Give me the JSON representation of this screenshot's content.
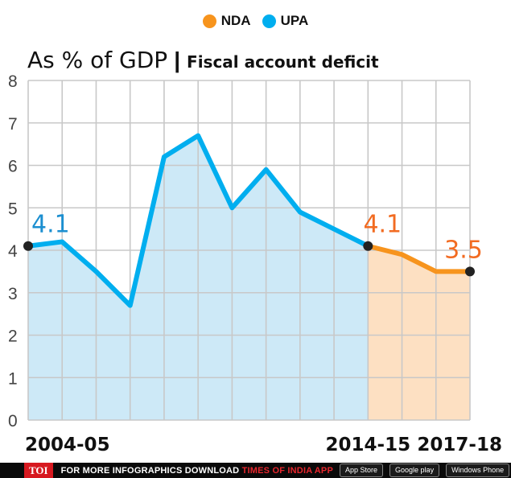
{
  "legend": {
    "items": [
      {
        "label": "NDA",
        "color": "#f7941d"
      },
      {
        "label": "UPA",
        "color": "#00aeef"
      }
    ]
  },
  "title": {
    "main": "As % of GDP",
    "separator": "|",
    "sub": "Fiscal account deficit"
  },
  "colors": {
    "upa_line": "#00aeef",
    "upa_fill": "#cde9f7",
    "nda_line": "#f7941d",
    "nda_fill": "#fde0c2",
    "upa_label": "#1c8fd0",
    "nda_label": "#f26b21",
    "grid": "#c8c8c8",
    "marker": "#222222"
  },
  "chart_data": {
    "type": "area",
    "x": [
      0,
      1,
      2,
      3,
      4,
      5,
      6,
      7,
      8,
      9,
      10,
      11,
      12,
      13
    ],
    "values": [
      4.1,
      4.2,
      3.5,
      2.7,
      6.2,
      6.7,
      5.0,
      5.9,
      4.9,
      4.5,
      4.1,
      3.9,
      3.5,
      3.5
    ],
    "series": [
      {
        "name": "UPA",
        "x": [
          0,
          1,
          2,
          3,
          4,
          5,
          6,
          7,
          8,
          9,
          10
        ],
        "values": [
          4.1,
          4.2,
          3.5,
          2.7,
          6.2,
          6.7,
          5.0,
          5.9,
          4.9,
          4.5,
          4.1
        ]
      },
      {
        "name": "NDA",
        "x": [
          10,
          11,
          12,
          13
        ],
        "values": [
          4.1,
          3.9,
          3.5,
          3.5
        ]
      }
    ],
    "x_tick_labels": [
      {
        "x": 0,
        "label": "2004-05"
      },
      {
        "x": 10,
        "label": "2014-15"
      },
      {
        "x": 13,
        "label": "2017-18"
      }
    ],
    "y_ticks": [
      "0",
      "1",
      "2",
      "3",
      "4",
      "5",
      "6",
      "7",
      "8"
    ],
    "ylim": [
      0,
      8
    ],
    "xlim": [
      0,
      13
    ],
    "grid": true,
    "annotations": [
      {
        "x": 0,
        "y": 4.1,
        "label": "4.1",
        "series": "UPA"
      },
      {
        "x": 10,
        "y": 4.1,
        "label": "4.1",
        "series": "NDA"
      },
      {
        "x": 13,
        "y": 3.5,
        "label": "3.5",
        "series": "NDA"
      }
    ]
  },
  "footer": {
    "brand": "TOI",
    "cta_prefix": "FOR MORE  INFOGRAPHICS DOWNLOAD",
    "cta_app": "TIMES OF INDIA APP",
    "badges": [
      "App Store",
      "Google play",
      "Windows Phone"
    ]
  }
}
